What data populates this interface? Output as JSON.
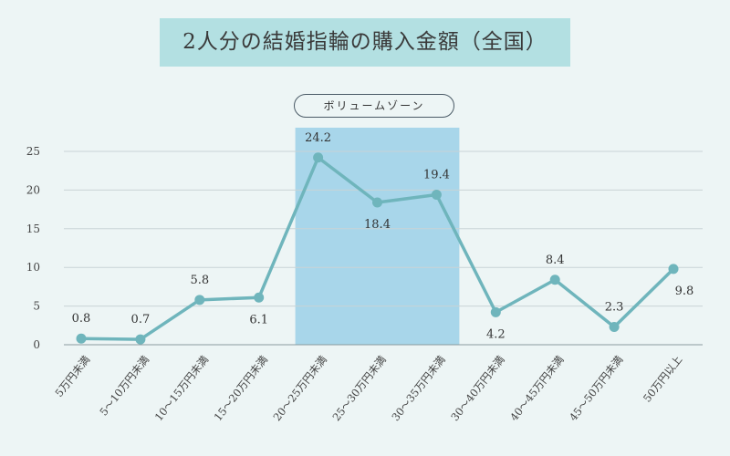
{
  "title": "2人分の結婚指輪の購入金額（全国）",
  "zone_label": "ボリュームゾーン",
  "colors": {
    "line": "#6fb5bc",
    "highlight": "#a8d6ea",
    "title_bg": "#b3e0e2",
    "grid": "#c9d3d6"
  },
  "chart_data": {
    "type": "line",
    "title": "2人分の結婚指輪の購入金額（全国）",
    "xlabel": "",
    "ylabel": "",
    "ylim": [
      0,
      25
    ],
    "yticks": [
      "0",
      "5",
      "10",
      "15",
      "20",
      "25"
    ],
    "grid": true,
    "categories": [
      "5万円未満",
      "5～10万円未満",
      "10～15万円未満",
      "15～20万円未満",
      "20～25万円未満",
      "25～30万円未満",
      "30～35万円未満",
      "30～40万円未満",
      "40～45万円未満",
      "45～50万円未満",
      "50万円以上"
    ],
    "values": [
      0.8,
      0.7,
      5.8,
      6.1,
      24.2,
      18.4,
      19.4,
      4.2,
      8.4,
      2.3,
      9.8
    ],
    "value_labels": [
      "0.8",
      "0.7",
      "5.8",
      "6.1",
      "24.2",
      "18.4",
      "19.4",
      "4.2",
      "8.4",
      "2.3",
      "9.8"
    ],
    "highlight_range": [
      "20～25万円未満",
      "30～35万円未満"
    ],
    "highlight_label": "ボリュームゾーン"
  }
}
